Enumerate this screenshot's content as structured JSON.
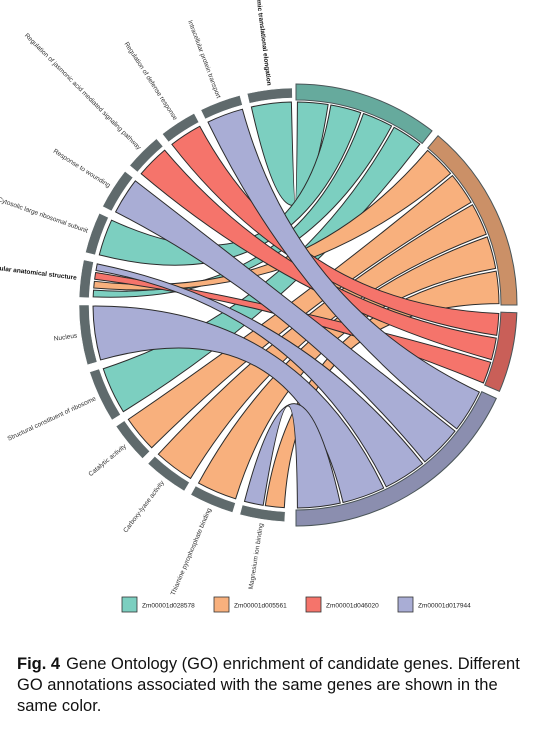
{
  "chart_data": {
    "type": "chord",
    "genes": [
      {
        "name": "Zm00001d028578",
        "color": "#7ccfc0"
      },
      {
        "name": "Zm00001d005561",
        "color": "#f8b07d"
      },
      {
        "name": "Zm00001d046020",
        "color": "#f5746b"
      },
      {
        "name": "Zm00001d017944",
        "color": "#a9add5"
      }
    ],
    "terms": [
      {
        "name": "Cytoplasmic translational elongation",
        "bold": true
      },
      {
        "name": "Intracellular protein transport",
        "bold": false
      },
      {
        "name": "Regulation of defense response",
        "bold": false
      },
      {
        "name": "Regulation of jasmonic acid mediated signaling pathway",
        "bold": false
      },
      {
        "name": "Response to wounding",
        "bold": false
      },
      {
        "name": "Cytosolic large ribosomal subunit",
        "bold": false
      },
      {
        "name": "Intracellular anatomical structure",
        "bold": true
      },
      {
        "name": "Nucleus",
        "bold": false
      },
      {
        "name": "Structural constituent of ribosome",
        "bold": false
      },
      {
        "name": "Catalytic activity",
        "bold": false
      },
      {
        "name": "Carboxy-lyase activity",
        "bold": false
      },
      {
        "name": "Thiamine pyrophosphate binding",
        "bold": false
      },
      {
        "name": "Magnesium ion binding",
        "bold": false
      }
    ],
    "links": [
      {
        "gene": "Zm00001d028578",
        "term": "Cytoplasmic translational elongation"
      },
      {
        "gene": "Zm00001d028578",
        "term": "Cytosolic large ribosomal subunit"
      },
      {
        "gene": "Zm00001d028578",
        "term": "Intracellular anatomical structure"
      },
      {
        "gene": "Zm00001d028578",
        "term": "Structural constituent of ribosome"
      },
      {
        "gene": "Zm00001d005561",
        "term": "Intracellular anatomical structure"
      },
      {
        "gene": "Zm00001d005561",
        "term": "Catalytic activity"
      },
      {
        "gene": "Zm00001d005561",
        "term": "Carboxy-lyase activity"
      },
      {
        "gene": "Zm00001d005561",
        "term": "Thiamine pyrophosphate binding"
      },
      {
        "gene": "Zm00001d005561",
        "term": "Magnesium ion binding"
      },
      {
        "gene": "Zm00001d046020",
        "term": "Regulation of jasmonic acid mediated signaling pathway"
      },
      {
        "gene": "Zm00001d046020",
        "term": "Regulation of defense response"
      },
      {
        "gene": "Zm00001d046020",
        "term": "Intracellular anatomical structure"
      },
      {
        "gene": "Zm00001d017944",
        "term": "Intracellular protein transport"
      },
      {
        "gene": "Zm00001d017944",
        "term": "Response to wounding"
      },
      {
        "gene": "Zm00001d017944",
        "term": "Intracellular anatomical structure"
      },
      {
        "gene": "Zm00001d017944",
        "term": "Nucleus"
      },
      {
        "gene": "Zm00001d017944",
        "term": "Magnesium ion binding"
      }
    ]
  },
  "caption": {
    "label": "Fig. 4",
    "text": "Gene Ontology (GO) enrichment of candidate genes. Different GO annotations associated with the same genes are shown in the same color."
  }
}
